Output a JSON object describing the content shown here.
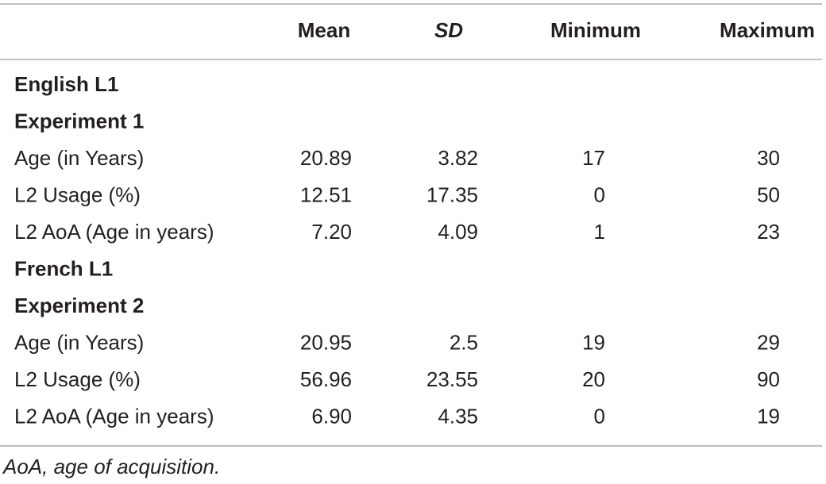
{
  "table": {
    "header": [
      "Mean",
      "SD",
      "Minimum",
      "Maximum"
    ],
    "sections": [
      {
        "title": "English L1",
        "subtitle": "Experiment 1",
        "rows": [
          {
            "label": "Age (in Years)",
            "cells": [
              "20.89",
              "3.82",
              "17",
              "30"
            ]
          },
          {
            "label": "L2 Usage (%)",
            "cells": [
              "12.51",
              "17.35",
              "0",
              "50"
            ]
          },
          {
            "label": "L2 AoA (Age in years)",
            "cells": [
              "7.20",
              "4.09",
              "1",
              "23"
            ]
          }
        ]
      },
      {
        "title": "French L1",
        "subtitle": "Experiment 2",
        "rows": [
          {
            "label": "Age (in Years)",
            "cells": [
              "20.95",
              "2.5",
              "19",
              "29"
            ]
          },
          {
            "label": "L2 Usage (%)",
            "cells": [
              "56.96",
              "23.55",
              "20",
              "90"
            ]
          },
          {
            "label": "L2 AoA (Age in years)",
            "cells": [
              "6.90",
              "4.35",
              "0",
              "19"
            ]
          }
        ]
      }
    ],
    "footnote": "AoA, age of acquisition."
  }
}
